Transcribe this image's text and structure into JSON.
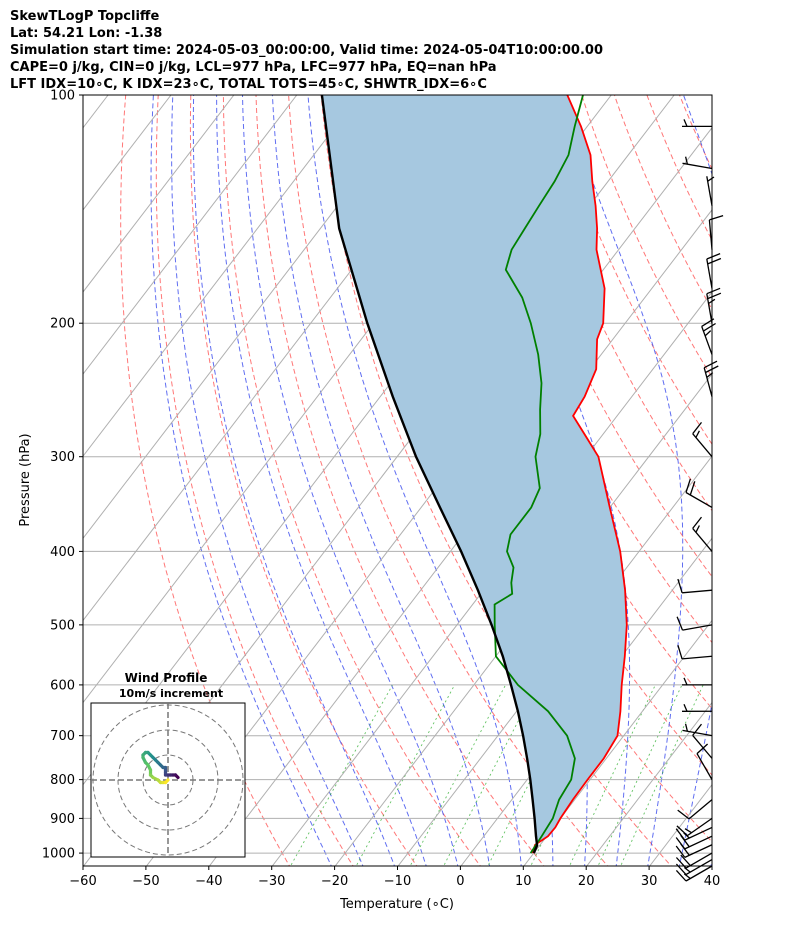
{
  "header": {
    "line1": "SkewTLogP Topcliffe",
    "line2": "Lat: 54.21   Lon: -1.38",
    "line3": "Simulation start time: 2024-05-03_00:00:00, Valid time: 2024-05-04T10:00:00.00",
    "line4": "CAPE=0 j/kg, CIN=0 j/kg, LCL=977 hPa, LFC=977 hPa, EQ=nan hPa",
    "line5": "LFT IDX=10∘C, K IDX=23∘C, TOTAL TOTS=45∘C, SHWTR_IDX=6∘C"
  },
  "chart_data": {
    "type": "line",
    "title": "",
    "xlabel": "Temperature (∘C)",
    "ylabel": "Pressure (hPa)",
    "xlim": [
      -60,
      40
    ],
    "ylim": [
      1040,
      100
    ],
    "yscale": "log",
    "skew": true,
    "grid": true,
    "x_ticks": [
      "−60",
      "−50",
      "−40",
      "−30",
      "−20",
      "−10",
      "0",
      "10",
      "20",
      "30",
      "40"
    ],
    "y_ticks": [
      "1000",
      "900",
      "800",
      "700",
      "600",
      "500",
      "400",
      "300",
      "200",
      "100"
    ],
    "series": [
      {
        "kind": "temperature",
        "color": "#ff0000",
        "points": [
          [
            1000,
            9.8
          ],
          [
            975,
            9.2
          ],
          [
            950,
            10.2
          ],
          [
            925,
            10.3
          ],
          [
            900,
            10.0
          ],
          [
            850,
            9.7
          ],
          [
            800,
            9.6
          ],
          [
            750,
            9.6
          ],
          [
            700,
            9.0
          ],
          [
            650,
            6.5
          ],
          [
            600,
            3.5
          ],
          [
            550,
            0.5
          ],
          [
            500,
            -3.0
          ],
          [
            450,
            -7.5
          ],
          [
            400,
            -13.0
          ],
          [
            350,
            -20.0
          ],
          [
            300,
            -28.0
          ],
          [
            280,
            -33.0
          ],
          [
            265,
            -37.0
          ],
          [
            250,
            -37.5
          ],
          [
            230,
            -39.0
          ],
          [
            210,
            -42.5
          ],
          [
            200,
            -43.5
          ],
          [
            180,
            -47.5
          ],
          [
            160,
            -53.5
          ],
          [
            150,
            -56.0
          ],
          [
            140,
            -59.0
          ],
          [
            130,
            -62.5
          ],
          [
            120,
            -66.0
          ],
          [
            110,
            -71.0
          ],
          [
            100,
            -77.0
          ]
        ]
      },
      {
        "kind": "dewpoint",
        "color": "#008000",
        "points": [
          [
            1000,
            9.5
          ],
          [
            950,
            9.2
          ],
          [
            900,
            8.8
          ],
          [
            850,
            7.5
          ],
          [
            800,
            7.0
          ],
          [
            750,
            5.0
          ],
          [
            700,
            1.0
          ],
          [
            650,
            -5.0
          ],
          [
            600,
            -13.0
          ],
          [
            550,
            -20.0
          ],
          [
            500,
            -24.0
          ],
          [
            470,
            -26.5
          ],
          [
            455,
            -25.0
          ],
          [
            440,
            -26.5
          ],
          [
            420,
            -28.0
          ],
          [
            400,
            -31.0
          ],
          [
            380,
            -32.5
          ],
          [
            350,
            -32.5
          ],
          [
            330,
            -33.5
          ],
          [
            300,
            -38.0
          ],
          [
            280,
            -40.0
          ],
          [
            260,
            -43.0
          ],
          [
            240,
            -46.0
          ],
          [
            220,
            -50.0
          ],
          [
            200,
            -55.0
          ],
          [
            185,
            -59.5
          ],
          [
            170,
            -65.5
          ],
          [
            160,
            -67.0
          ],
          [
            150,
            -67.5
          ],
          [
            140,
            -68.0
          ],
          [
            130,
            -68.5
          ],
          [
            120,
            -69.5
          ],
          [
            110,
            -72.0
          ],
          [
            100,
            -74.5
          ]
        ]
      },
      {
        "kind": "parcel",
        "color": "#000000",
        "points": [
          [
            1000,
            10.0
          ],
          [
            977,
            9.6
          ],
          [
            950,
            8.3
          ],
          [
            900,
            5.9
          ],
          [
            850,
            3.3
          ],
          [
            800,
            0.5
          ],
          [
            750,
            -2.6
          ],
          [
            700,
            -6.0
          ],
          [
            650,
            -9.8
          ],
          [
            600,
            -14.1
          ],
          [
            550,
            -18.9
          ],
          [
            500,
            -24.5
          ],
          [
            450,
            -30.9
          ],
          [
            400,
            -38.3
          ],
          [
            350,
            -47.0
          ],
          [
            300,
            -57.0
          ],
          [
            250,
            -68.0
          ],
          [
            200,
            -81.0
          ],
          [
            150,
            -97.0
          ],
          [
            100,
            -116.0
          ]
        ]
      }
    ],
    "wind_barbs": {
      "units": "kt",
      "levels": [
        {
          "p": 1040,
          "spd": 15,
          "dir": 240
        },
        {
          "p": 1020,
          "spd": 15,
          "dir": 240
        },
        {
          "p": 1000,
          "spd": 20,
          "dir": 240
        },
        {
          "p": 975,
          "spd": 20,
          "dir": 245
        },
        {
          "p": 950,
          "spd": 20,
          "dir": 245
        },
        {
          "p": 925,
          "spd": 15,
          "dir": 245
        },
        {
          "p": 900,
          "spd": 15,
          "dir": 235
        },
        {
          "p": 850,
          "spd": 10,
          "dir": 230
        },
        {
          "p": 800,
          "spd": 10,
          "dir": 330
        },
        {
          "p": 750,
          "spd": 10,
          "dir": 320
        },
        {
          "p": 700,
          "spd": 5,
          "dir": 280
        },
        {
          "p": 650,
          "spd": 5,
          "dir": 270
        },
        {
          "p": 600,
          "spd": 5,
          "dir": 270
        },
        {
          "p": 550,
          "spd": 10,
          "dir": 265
        },
        {
          "p": 500,
          "spd": 10,
          "dir": 260
        },
        {
          "p": 450,
          "spd": 10,
          "dir": 265
        },
        {
          "p": 400,
          "spd": 15,
          "dir": 320
        },
        {
          "p": 350,
          "spd": 20,
          "dir": 300
        },
        {
          "p": 300,
          "spd": 15,
          "dir": 320
        },
        {
          "p": 250,
          "spd": 25,
          "dir": 345
        },
        {
          "p": 220,
          "spd": 25,
          "dir": 340
        },
        {
          "p": 200,
          "spd": 25,
          "dir": 350
        },
        {
          "p": 180,
          "spd": 20,
          "dir": 350
        },
        {
          "p": 160,
          "spd": 10,
          "dir": 355
        },
        {
          "p": 140,
          "spd": 5,
          "dir": 350
        },
        {
          "p": 125,
          "spd": 5,
          "dir": 280
        },
        {
          "p": 110,
          "spd": 5,
          "dir": 270
        }
      ]
    },
    "hodograph": {
      "title": "Wind Profile",
      "subtitle": "10m/s increment",
      "ring_increment_ms": 10,
      "rings": 3,
      "points": [
        [
          4,
          1
        ],
        [
          3,
          2
        ],
        [
          2,
          2
        ],
        [
          1,
          2
        ],
        [
          0,
          2
        ],
        [
          -1,
          2
        ],
        [
          -1,
          3
        ],
        [
          -1,
          4
        ],
        [
          -1,
          5
        ],
        [
          -2,
          5
        ],
        [
          -3,
          6
        ],
        [
          -4,
          7
        ],
        [
          -5,
          8
        ],
        [
          -6,
          9
        ],
        [
          -7,
          10
        ],
        [
          -8,
          11
        ],
        [
          -9,
          11
        ],
        [
          -10,
          10
        ],
        [
          -10,
          9
        ],
        [
          -9,
          7
        ],
        [
          -8,
          6
        ],
        [
          -7,
          4
        ],
        [
          -7,
          2
        ],
        [
          -6,
          1
        ],
        [
          -4,
          0
        ],
        [
          -3,
          -1
        ],
        [
          -2,
          -1
        ],
        [
          -1,
          -1
        ],
        [
          0,
          0
        ]
      ]
    }
  }
}
